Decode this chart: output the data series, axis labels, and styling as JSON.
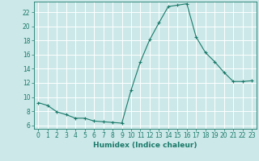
{
  "x": [
    0,
    1,
    2,
    3,
    4,
    5,
    6,
    7,
    8,
    9,
    10,
    11,
    12,
    13,
    14,
    15,
    16,
    17,
    18,
    19,
    20,
    21,
    22,
    23
  ],
  "y": [
    9.2,
    8.8,
    7.9,
    7.5,
    7.0,
    7.0,
    6.6,
    6.5,
    6.4,
    6.3,
    11.0,
    15.0,
    18.1,
    20.5,
    22.8,
    23.0,
    23.2,
    18.5,
    16.3,
    15.0,
    13.5,
    12.2,
    12.2,
    12.3
  ],
  "line_color": "#1a7a6a",
  "marker": "+",
  "marker_size": 3.5,
  "background_color": "#cce8e8",
  "grid_color": "#b0d0d0",
  "xlabel": "Humidex (Indice chaleur)",
  "xlim": [
    -0.5,
    23.5
  ],
  "ylim": [
    5.5,
    23.5
  ],
  "xticks": [
    0,
    1,
    2,
    3,
    4,
    5,
    6,
    7,
    8,
    9,
    10,
    11,
    12,
    13,
    14,
    15,
    16,
    17,
    18,
    19,
    20,
    21,
    22,
    23
  ],
  "yticks": [
    6,
    8,
    10,
    12,
    14,
    16,
    18,
    20,
    22
  ],
  "tick_fontsize": 5.5,
  "xlabel_fontsize": 6.5
}
